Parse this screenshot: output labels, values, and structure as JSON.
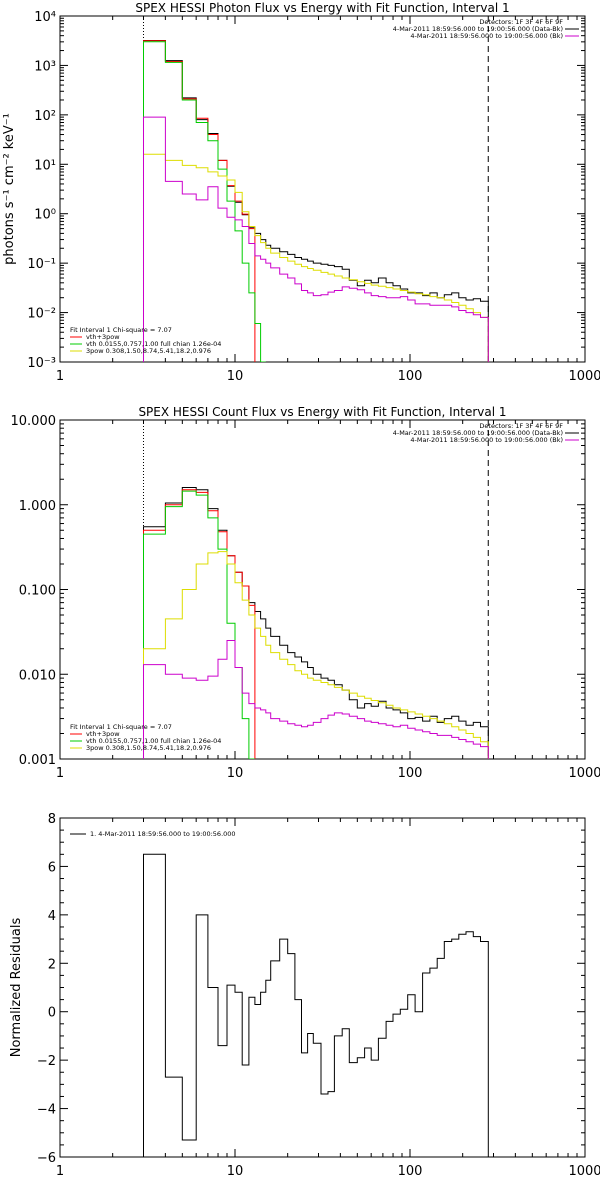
{
  "chart_data": [
    {
      "type": "line",
      "panel": "photon",
      "title": "SPEX HESSI Photon Flux vs Energy with Fit Function, Interval 1",
      "ylabel": "photons s⁻¹ cm⁻² keV⁻¹",
      "xlabel": "",
      "xscale": "log",
      "yscale": "log",
      "xlim": [
        1,
        1000
      ],
      "ylim": [
        0.001,
        10000
      ],
      "xticks": [
        "1",
        "10",
        "100",
        "1000"
      ],
      "yticks": [
        "10⁻³",
        "10⁻²",
        "10⁻¹",
        "10⁰",
        "10¹",
        "10²",
        "10³",
        "10⁴"
      ],
      "markers": [
        {
          "x": 3,
          "style": "dotted"
        },
        {
          "x": 280,
          "style": "dashed"
        }
      ],
      "legend_top": [
        "Detectors: 1F 3F 4F 6F 9F",
        "4-Mar-2011 18:59:56.000 to 19:00:56.000 (Data-Bk)",
        "4-Mar-2011 18:59:56.000 to 19:00:56.000 (Bk)"
      ],
      "legend_bottom": [
        "Fit Interval  1     Chi-square = 7.07",
        "vth+3pow",
        "vth  0.0155,0.757,1.00  full chian 1.26e-04",
        "3pow  0.308,1.50,8.74,5.41,18.2,0.976"
      ],
      "edges": [
        3,
        4,
        5,
        6,
        7,
        8,
        9,
        10,
        11,
        12,
        13,
        14,
        15,
        16,
        18,
        20,
        22,
        24,
        26,
        28,
        31,
        34,
        37,
        41,
        45,
        50,
        55,
        60,
        66,
        73,
        80,
        88,
        97,
        107,
        118,
        130,
        143,
        157,
        173,
        190,
        209,
        230,
        253,
        280
      ],
      "series": [
        {
          "color": "#000000",
          "values": [
            3200,
            1250,
            220,
            80,
            42,
            12,
            3.6,
            1.7,
            0.95,
            0.52,
            0.4,
            0.3,
            0.23,
            0.2,
            0.17,
            0.15,
            0.13,
            0.12,
            0.11,
            0.1,
            0.095,
            0.09,
            0.085,
            0.075,
            0.045,
            0.035,
            0.045,
            0.04,
            0.05,
            0.04,
            0.035,
            0.03,
            0.025,
            0.025,
            0.022,
            0.025,
            0.02,
            0.023,
            0.025,
            0.02,
            0.018,
            0.019,
            0.017
          ]
        },
        {
          "color": "#ff0000",
          "values": [
            3150,
            1200,
            210,
            85,
            40,
            12,
            3.7,
            1.8,
            0.98,
            0.5
          ]
        },
        {
          "color": "#00cc00",
          "values": [
            3000,
            1150,
            200,
            70,
            30,
            8,
            1.8,
            0.45,
            0.1,
            0.025,
            0.006,
            0.001
          ]
        },
        {
          "color": "#dddd00",
          "values": [
            16,
            12,
            9.5,
            8.5,
            7,
            5.8,
            4.8,
            2.7,
            1.1,
            0.55,
            0.36,
            0.26,
            0.2,
            0.16,
            0.13,
            0.11,
            0.095,
            0.085,
            0.078,
            0.072,
            0.065,
            0.06,
            0.055,
            0.05,
            0.046,
            0.042,
            0.039,
            0.036,
            0.034,
            0.032,
            0.03,
            0.028,
            0.026,
            0.024,
            0.023,
            0.021,
            0.02,
            0.018,
            0.016,
            0.014,
            0.012,
            0.01,
            0.008
          ]
        },
        {
          "color": "#cc00cc",
          "values": [
            90,
            4.5,
            2.5,
            1.9,
            3.5,
            1.3,
            0.85,
            0.75,
            0.55,
            0.25,
            0.14,
            0.12,
            0.1,
            0.08,
            0.06,
            0.05,
            0.038,
            0.028,
            0.025,
            0.022,
            0.023,
            0.026,
            0.028,
            0.033,
            0.031,
            0.029,
            0.025,
            0.022,
            0.021,
            0.02,
            0.02,
            0.021,
            0.018,
            0.015,
            0.015,
            0.014,
            0.014,
            0.014,
            0.013,
            0.011,
            0.01,
            0.009,
            0.008
          ]
        }
      ]
    },
    {
      "type": "line",
      "panel": "count",
      "title": "SPEX HESSI Count Flux vs Energy with Fit Function, Interval 1",
      "ylabel": "",
      "xlabel": "",
      "xscale": "log",
      "yscale": "log",
      "xlim": [
        1,
        1000
      ],
      "ylim": [
        0.001,
        10
      ],
      "xticks": [
        "1",
        "10",
        "100",
        "1000"
      ],
      "yticks": [
        "0.001",
        "0.010",
        "0.100",
        "1.000",
        "10.000"
      ],
      "markers": [
        {
          "x": 3,
          "style": "dotted"
        },
        {
          "x": 280,
          "style": "dashed"
        }
      ],
      "legend_top": [
        "Detectors: 1F 3F 4F 6F 9F",
        "4-Mar-2011 18:59:56.000 to 19:00:56.000 (Data-Bk)",
        "4-Mar-2011 18:59:56.000 to 19:00:56.000 (Bk)"
      ],
      "legend_bottom": [
        "Fit Interval  1     Chi-square = 7.07",
        "vth+3pow",
        "vth  0.0155,0.757,1.00  full chian 1.26e-04",
        "3pow  0.308,1.50,8.74,5.41,18.2,0.976"
      ],
      "edges": [
        3,
        4,
        5,
        6,
        7,
        8,
        9,
        10,
        11,
        12,
        13,
        14,
        15,
        16,
        18,
        20,
        22,
        24,
        26,
        28,
        31,
        34,
        37,
        41,
        45,
        50,
        55,
        60,
        66,
        73,
        80,
        88,
        97,
        107,
        118,
        130,
        143,
        157,
        173,
        190,
        209,
        230,
        253,
        280
      ],
      "series": [
        {
          "color": "#000000",
          "values": [
            0.55,
            1.05,
            1.6,
            1.5,
            0.9,
            0.5,
            0.25,
            0.16,
            0.11,
            0.07,
            0.055,
            0.045,
            0.035,
            0.028,
            0.022,
            0.018,
            0.016,
            0.014,
            0.012,
            0.01,
            0.009,
            0.0085,
            0.0075,
            0.0065,
            0.005,
            0.004,
            0.0045,
            0.0042,
            0.0048,
            0.004,
            0.0038,
            0.0035,
            0.003,
            0.0031,
            0.0028,
            0.0032,
            0.0027,
            0.003,
            0.0032,
            0.0028,
            0.0025,
            0.0027,
            0.0024
          ]
        },
        {
          "color": "#ff0000",
          "values": [
            0.5,
            1.0,
            1.5,
            1.4,
            0.85,
            0.48,
            0.25,
            0.16,
            0.11,
            0.065
          ]
        },
        {
          "color": "#00cc00",
          "values": [
            0.45,
            0.95,
            1.45,
            1.3,
            0.7,
            0.3,
            0.04,
            0.012,
            0.003,
            0.001
          ]
        },
        {
          "color": "#dddd00",
          "values": [
            0.02,
            0.045,
            0.1,
            0.2,
            0.27,
            0.28,
            0.2,
            0.12,
            0.075,
            0.05,
            0.035,
            0.028,
            0.022,
            0.018,
            0.015,
            0.013,
            0.011,
            0.01,
            0.009,
            0.0085,
            0.008,
            0.0075,
            0.007,
            0.0065,
            0.006,
            0.0055,
            0.0052,
            0.0049,
            0.0046,
            0.0043,
            0.004,
            0.0038,
            0.0036,
            0.0034,
            0.0032,
            0.003,
            0.0028,
            0.0026,
            0.0024,
            0.0022,
            0.002,
            0.0018,
            0.0016
          ]
        },
        {
          "color": "#cc00cc",
          "values": [
            0.013,
            0.01,
            0.009,
            0.0085,
            0.0095,
            0.015,
            0.025,
            0.012,
            0.006,
            0.0045,
            0.004,
            0.0038,
            0.0035,
            0.003,
            0.0028,
            0.0026,
            0.0025,
            0.0024,
            0.0025,
            0.0027,
            0.003,
            0.0033,
            0.0035,
            0.0034,
            0.0032,
            0.003,
            0.0028,
            0.0027,
            0.0026,
            0.0025,
            0.0024,
            0.0025,
            0.0023,
            0.0022,
            0.0021,
            0.002,
            0.0019,
            0.0019,
            0.0018,
            0.0017,
            0.0016,
            0.0015,
            0.0014
          ]
        }
      ]
    },
    {
      "type": "line",
      "panel": "residuals",
      "title": "",
      "ylabel": "Normalized Residuals",
      "xlabel": "",
      "xscale": "log",
      "yscale": "linear",
      "xlim": [
        1,
        1000
      ],
      "ylim": [
        -6,
        8
      ],
      "xticks": [
        "1",
        "10",
        "100",
        "1000"
      ],
      "yticks": [
        "−6",
        "−4",
        "−2",
        "0",
        "2",
        "4",
        "6",
        "8"
      ],
      "legend_top": [
        "1.  4-Mar-2011 18:59:56.000 to 19:00:56.000"
      ],
      "edges": [
        3,
        4,
        5,
        6,
        7,
        8,
        9,
        10,
        11,
        12,
        13,
        14,
        15,
        16,
        18,
        20,
        22,
        24,
        26,
        28,
        31,
        34,
        37,
        41,
        45,
        50,
        55,
        60,
        66,
        73,
        80,
        88,
        97,
        107,
        118,
        130,
        143,
        157,
        173,
        190,
        209,
        230,
        253,
        280
      ],
      "series": [
        {
          "color": "#000000",
          "values": [
            6.5,
            -2.7,
            -5.3,
            4.0,
            1.0,
            -1.4,
            1.1,
            0.8,
            -2.2,
            0.6,
            0.3,
            0.8,
            1.3,
            2.1,
            3.0,
            2.4,
            0.5,
            -1.7,
            -0.9,
            -1.3,
            -3.4,
            -3.3,
            -1.0,
            -0.7,
            -2.1,
            -1.9,
            -1.5,
            -2.0,
            -1.1,
            -0.4,
            -0.1,
            0.1,
            0.7,
            0.0,
            1.6,
            1.8,
            2.2,
            2.9,
            3.0,
            3.2,
            3.3,
            3.1,
            2.9
          ]
        }
      ]
    }
  ]
}
